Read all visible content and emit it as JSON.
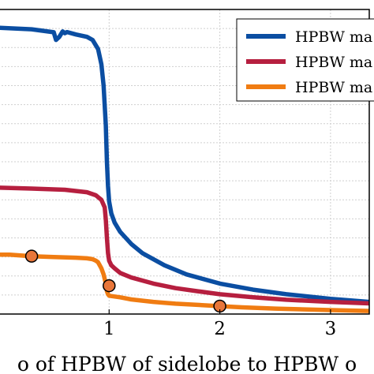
{
  "chart_data": {
    "type": "line",
    "title": "",
    "xlabel": "o of HPBW of sidelobe to HPBW o",
    "ylabel": "",
    "xlim": [
      0.0,
      3.35
    ],
    "ylim": [
      0.0,
      1.0
    ],
    "grid": true,
    "legend_position": "top-right",
    "x_ticks": [
      {
        "value": 1,
        "label": "1"
      },
      {
        "value": 2,
        "label": "2"
      },
      {
        "value": 3,
        "label": "3"
      }
    ],
    "colors": {
      "blue": "#0b4ea2",
      "red": "#b61f3f",
      "orange": "#f07c12",
      "marker_fill": "#e8763a"
    },
    "series": [
      {
        "name": "HPBW ma",
        "color": "#0b4ea2",
        "x": [
          0.0,
          0.3,
          0.5,
          0.52,
          0.55,
          0.58,
          0.6,
          0.62,
          0.7,
          0.8,
          0.85,
          0.9,
          0.93,
          0.95,
          0.97,
          0.98,
          0.99,
          1.0,
          1.02,
          1.05,
          1.1,
          1.2,
          1.3,
          1.5,
          1.7,
          2.0,
          2.3,
          2.6,
          3.0,
          3.35
        ],
        "y": [
          0.94,
          0.935,
          0.925,
          0.9,
          0.91,
          0.928,
          0.922,
          0.926,
          0.918,
          0.91,
          0.9,
          0.87,
          0.82,
          0.75,
          0.62,
          0.5,
          0.42,
          0.37,
          0.33,
          0.3,
          0.27,
          0.23,
          0.2,
          0.16,
          0.13,
          0.1,
          0.08,
          0.065,
          0.05,
          0.04
        ]
      },
      {
        "name": "HPBW ma",
        "color": "#b61f3f",
        "x": [
          0.0,
          0.3,
          0.6,
          0.8,
          0.88,
          0.93,
          0.96,
          0.97,
          0.98,
          0.99,
          1.0,
          1.02,
          1.05,
          1.1,
          1.2,
          1.4,
          1.6,
          1.8,
          2.0,
          2.3,
          2.6,
          3.0,
          3.35
        ],
        "y": [
          0.415,
          0.412,
          0.408,
          0.4,
          0.39,
          0.375,
          0.35,
          0.31,
          0.25,
          0.2,
          0.175,
          0.16,
          0.15,
          0.135,
          0.12,
          0.1,
          0.085,
          0.075,
          0.065,
          0.055,
          0.047,
          0.04,
          0.035
        ]
      },
      {
        "name": "HPBW ma",
        "color": "#f07c12",
        "x": [
          0.0,
          0.1,
          0.3,
          0.5,
          0.7,
          0.8,
          0.85,
          0.88,
          0.9,
          0.93,
          0.95,
          0.97,
          0.98,
          0.99,
          1.0,
          1.1,
          1.2,
          1.4,
          1.6,
          1.8,
          2.0,
          2.2,
          2.5,
          2.8,
          3.0,
          3.35
        ],
        "y": [
          0.195,
          0.195,
          0.19,
          0.187,
          0.185,
          0.183,
          0.18,
          0.175,
          0.17,
          0.15,
          0.13,
          0.1,
          0.075,
          0.065,
          0.06,
          0.055,
          0.048,
          0.04,
          0.034,
          0.03,
          0.026,
          0.022,
          0.018,
          0.015,
          0.013,
          0.01
        ]
      }
    ],
    "markers": [
      {
        "x": 0.3,
        "y": 0.19
      },
      {
        "x": 1.0,
        "y": 0.093
      },
      {
        "x": 2.0,
        "y": 0.026
      }
    ]
  }
}
